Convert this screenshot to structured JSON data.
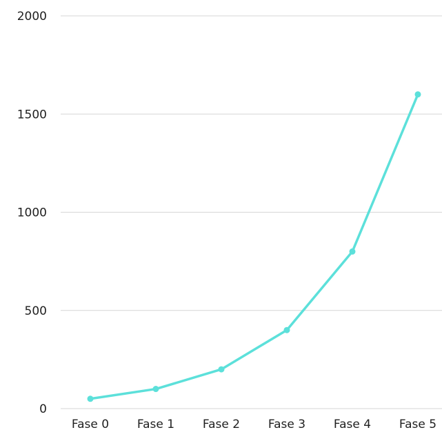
{
  "chart_data": {
    "type": "line",
    "title": "",
    "xlabel": "",
    "ylabel": "",
    "categories": [
      "Fase 0",
      "Fase 1",
      "Fase 2",
      "Fase 3",
      "Fase 4",
      "Fase 5"
    ],
    "series": [
      {
        "values": [
          50,
          100,
          200,
          400,
          800,
          1600
        ],
        "color": "#5ce0da"
      }
    ],
    "ylim": [
      0,
      2000
    ],
    "yticks": [
      0,
      500,
      1000,
      1500,
      2000
    ],
    "ytick_labels": [
      "0",
      "500",
      "1000",
      "1500",
      "2000"
    ],
    "grid": true,
    "markers": true,
    "legend": "none"
  }
}
